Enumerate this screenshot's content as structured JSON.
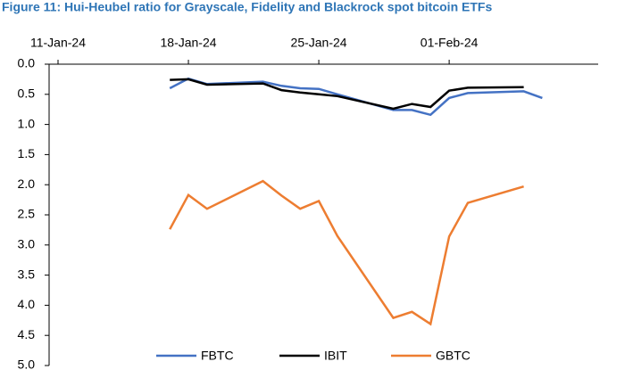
{
  "chart_data": {
    "type": "line",
    "title": "Figure 11: Hui-Heubel ratio for Grayscale, Fidelity and Blackrock spot bitcoin ETFs",
    "x": [
      "2024-01-17",
      "2024-01-18",
      "2024-01-19",
      "2024-01-22",
      "2024-01-23",
      "2024-01-24",
      "2024-01-25",
      "2024-01-26",
      "2024-01-29",
      "2024-01-30",
      "2024-01-31",
      "2024-02-01",
      "2024-02-02",
      "2024-02-05",
      "2024-02-06"
    ],
    "series": [
      {
        "name": "FBTC",
        "color": "#4472c4",
        "values": [
          0.4,
          0.24,
          0.33,
          0.29,
          0.36,
          0.4,
          0.41,
          0.5,
          0.76,
          0.76,
          0.84,
          0.56,
          0.48,
          0.45,
          0.56
        ]
      },
      {
        "name": "IBIT",
        "color": "#000000",
        "values": [
          0.26,
          0.25,
          0.34,
          0.32,
          0.43,
          0.47,
          0.5,
          0.53,
          0.74,
          0.66,
          0.71,
          0.44,
          0.39,
          0.38,
          null
        ]
      },
      {
        "name": "GBTC",
        "color": "#ed7d31",
        "values": [
          2.74,
          2.17,
          2.4,
          1.94,
          2.18,
          2.4,
          2.27,
          2.85,
          4.21,
          4.11,
          4.31,
          2.86,
          2.3,
          2.03,
          null
        ]
      }
    ],
    "xlim": [
      "2024-01-11",
      "2024-02-09"
    ],
    "xticks": [
      {
        "value": "2024-01-11",
        "label": "11-Jan-24"
      },
      {
        "value": "2024-01-18",
        "label": "18-Jan-24"
      },
      {
        "value": "2024-01-25",
        "label": "25-Jan-24"
      },
      {
        "value": "2024-02-01",
        "label": "01-Feb-24"
      }
    ],
    "ylim": [
      0,
      5
    ],
    "y_reversed": true,
    "yticks": [
      {
        "value": 0,
        "label": "0.0"
      },
      0.5,
      {
        "value": 1,
        "label": "1.0"
      },
      1.5,
      {
        "value": 2,
        "label": "2.0"
      },
      2.5,
      {
        "value": 3,
        "label": "3.0"
      },
      3.5,
      {
        "value": 4,
        "label": "4.0"
      },
      4.5,
      {
        "value": 5,
        "label": "5.0"
      }
    ],
    "legend": "bottom"
  }
}
